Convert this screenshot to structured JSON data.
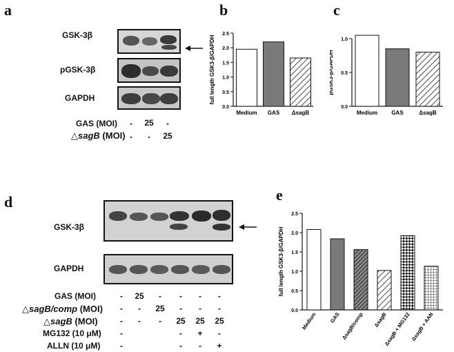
{
  "panels": {
    "a": {
      "letter": "a",
      "blots": [
        "GSK-3β",
        "pGSK-3β",
        "GAPDH"
      ],
      "conditions": [
        {
          "label": "GAS (MOI)",
          "values": [
            "-",
            "25",
            "-"
          ]
        },
        {
          "label_prefix": "△",
          "label_italic": "sagB",
          "label_suffix": " (MOI)",
          "values": [
            "-",
            "-",
            "25"
          ]
        }
      ]
    },
    "b": {
      "letter": "b"
    },
    "c": {
      "letter": "c"
    },
    "d": {
      "letter": "d",
      "blots": [
        "GSK-3β",
        "GAPDH"
      ],
      "conditions": [
        {
          "label": "GAS (MOI)",
          "values": [
            "-",
            "25",
            "-",
            "-",
            "-",
            "-"
          ]
        },
        {
          "label_prefix": "△",
          "label_italic": "sagB/comp",
          "label_suffix": " (MOI)",
          "values": [
            "-",
            "-",
            "25",
            "-",
            "-",
            "-"
          ]
        },
        {
          "label_prefix": "△",
          "label_italic": "sagB",
          "label_suffix": " (MOI)",
          "values": [
            "-",
            "-",
            "-",
            "25",
            "25",
            "25"
          ]
        },
        {
          "label": "MG132 (10 μM)",
          "values": [
            "-",
            "",
            "",
            "-",
            "+",
            "-"
          ]
        },
        {
          "label": "ALLN (10 μM)",
          "values": [
            "-",
            "",
            "",
            "-",
            "-",
            "+"
          ]
        }
      ]
    },
    "e": {
      "letter": "e"
    }
  },
  "chart_data": [
    {
      "type": "bar",
      "ylabel": "full length GSK3-β/GAPDH",
      "categories": [
        "Medium",
        "GAS",
        "ΔsagB"
      ],
      "values": [
        1.95,
        2.2,
        1.65
      ],
      "ylim": [
        0,
        2.5
      ],
      "yticks": [
        "0.0",
        "0.5",
        "1.0",
        "1.5",
        "2.0",
        "2.5"
      ],
      "bar_styles": [
        "white",
        "gray",
        "hatch"
      ]
    },
    {
      "type": "bar",
      "ylabel": "pGSK3-β/GAPDH",
      "categories": [
        "Medium",
        "GAS",
        "ΔsagB"
      ],
      "values": [
        1.05,
        0.85,
        0.8
      ],
      "ylim": [
        0,
        1.0
      ],
      "yticks": [
        "0.0",
        "0.5",
        "1.0"
      ],
      "bar_styles": [
        "white",
        "gray",
        "hatch"
      ]
    },
    {
      "type": "bar",
      "ylabel": "full length GSK3-β/GAPDH",
      "categories": [
        "Medium",
        "GAS",
        "ΔsagB/comp",
        "ΔsagB",
        "ΔsagB + MG132",
        "ΔsagB + AAN"
      ],
      "values": [
        2.08,
        1.84,
        1.56,
        1.02,
        1.92,
        1.13
      ],
      "ylim": [
        0,
        2.5
      ],
      "yticks": [
        "0.0",
        "0.5",
        "1.0",
        "1.5",
        "2.0",
        "2.5"
      ],
      "bar_styles": [
        "white",
        "gray",
        "darkhatch",
        "hatch",
        "checker",
        "grid"
      ]
    }
  ]
}
